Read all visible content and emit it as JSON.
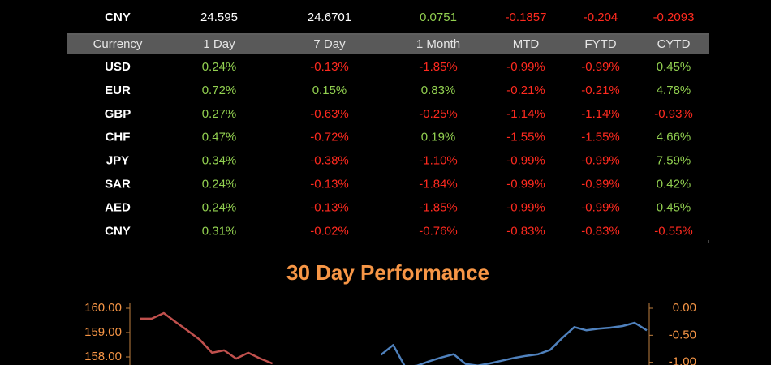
{
  "top_row": [
    "CNY",
    "24.595",
    "24.6701",
    "0.0751",
    "-0.1857",
    "-0.204",
    "-0.2093"
  ],
  "table": {
    "header": [
      "Currency",
      "1 Day",
      "7 Day",
      "1 Month",
      "MTD",
      "FYTD",
      "CYTD"
    ],
    "rows": [
      [
        "USD",
        "0.24%",
        "-0.13%",
        "-1.85%",
        "-0.99%",
        "-0.99%",
        "0.45%"
      ],
      [
        "EUR",
        "0.72%",
        "0.15%",
        "0.83%",
        "-0.21%",
        "-0.21%",
        "4.78%"
      ],
      [
        "GBP",
        "0.27%",
        "-0.63%",
        "-0.25%",
        "-1.14%",
        "-1.14%",
        "-0.93%"
      ],
      [
        "CHF",
        "0.47%",
        "-0.72%",
        "0.19%",
        "-1.55%",
        "-1.55%",
        "4.66%"
      ],
      [
        "JPY",
        "0.34%",
        "-0.38%",
        "-1.10%",
        "-0.99%",
        "-0.99%",
        "7.59%"
      ],
      [
        "SAR",
        "0.24%",
        "-0.13%",
        "-1.84%",
        "-0.99%",
        "-0.99%",
        "0.42%"
      ],
      [
        "AED",
        "0.24%",
        "-0.13%",
        "-1.85%",
        "-0.99%",
        "-0.99%",
        "0.45%"
      ],
      [
        "CNY",
        "0.31%",
        "-0.02%",
        "-0.76%",
        "-0.83%",
        "-0.83%",
        "-0.55%"
      ]
    ]
  },
  "chart_data": {
    "type": "line",
    "title": "30 Day Performance",
    "categories": [
      null,
      null,
      null,
      null,
      null,
      null,
      null,
      null,
      null,
      null,
      null,
      null,
      null,
      null,
      null,
      null,
      null,
      null,
      null,
      null,
      null,
      null,
      null,
      null,
      null,
      null,
      null,
      null,
      null,
      null,
      null,
      null,
      null,
      null,
      null,
      null,
      null,
      null,
      null,
      null,
      null,
      null,
      null
    ],
    "series": [
      {
        "color": "#c0504d",
        "values": [
          159.57,
          159.57,
          159.8,
          159.43,
          159.07,
          158.7,
          158.17,
          158.27,
          157.93,
          158.17,
          157.93,
          157.73,
          null,
          null,
          null,
          null,
          null,
          null,
          null,
          null,
          null,
          null,
          null,
          null,
          null,
          null,
          null,
          null,
          null,
          null,
          null,
          null,
          null,
          null,
          null,
          null,
          null,
          null,
          null,
          null,
          null,
          null,
          null
        ]
      },
      {
        "color": "#4f81bd",
        "axis": "y2",
        "values": [
          null,
          null,
          null,
          null,
          null,
          null,
          null,
          null,
          null,
          null,
          null,
          null,
          null,
          null,
          null,
          null,
          null,
          null,
          null,
          null,
          -0.86,
          -0.68,
          -1.09,
          -1.06,
          -0.98,
          -0.91,
          -0.85,
          -1.03,
          -1.06,
          -1.02,
          -0.97,
          -0.92,
          -0.88,
          -0.85,
          -0.77,
          -0.55,
          -0.35,
          -0.41,
          -0.38,
          -0.36,
          -0.33,
          -0.27,
          -0.41
        ]
      }
    ],
    "ylim": [
      156,
      160
    ],
    "yticks": [
      {
        "value": 158,
        "label": "158.00"
      },
      {
        "value": 159,
        "label": "159.00"
      },
      {
        "value": 160,
        "label": "160.00"
      }
    ],
    "y2lim": [
      -1.8,
      0
    ],
    "y2ticks": [
      {
        "value": -1,
        "label": "-1.00"
      },
      {
        "value": -0.5,
        "label": "-0.50"
      },
      {
        "value": 0,
        "label": "0.00"
      }
    ]
  }
}
